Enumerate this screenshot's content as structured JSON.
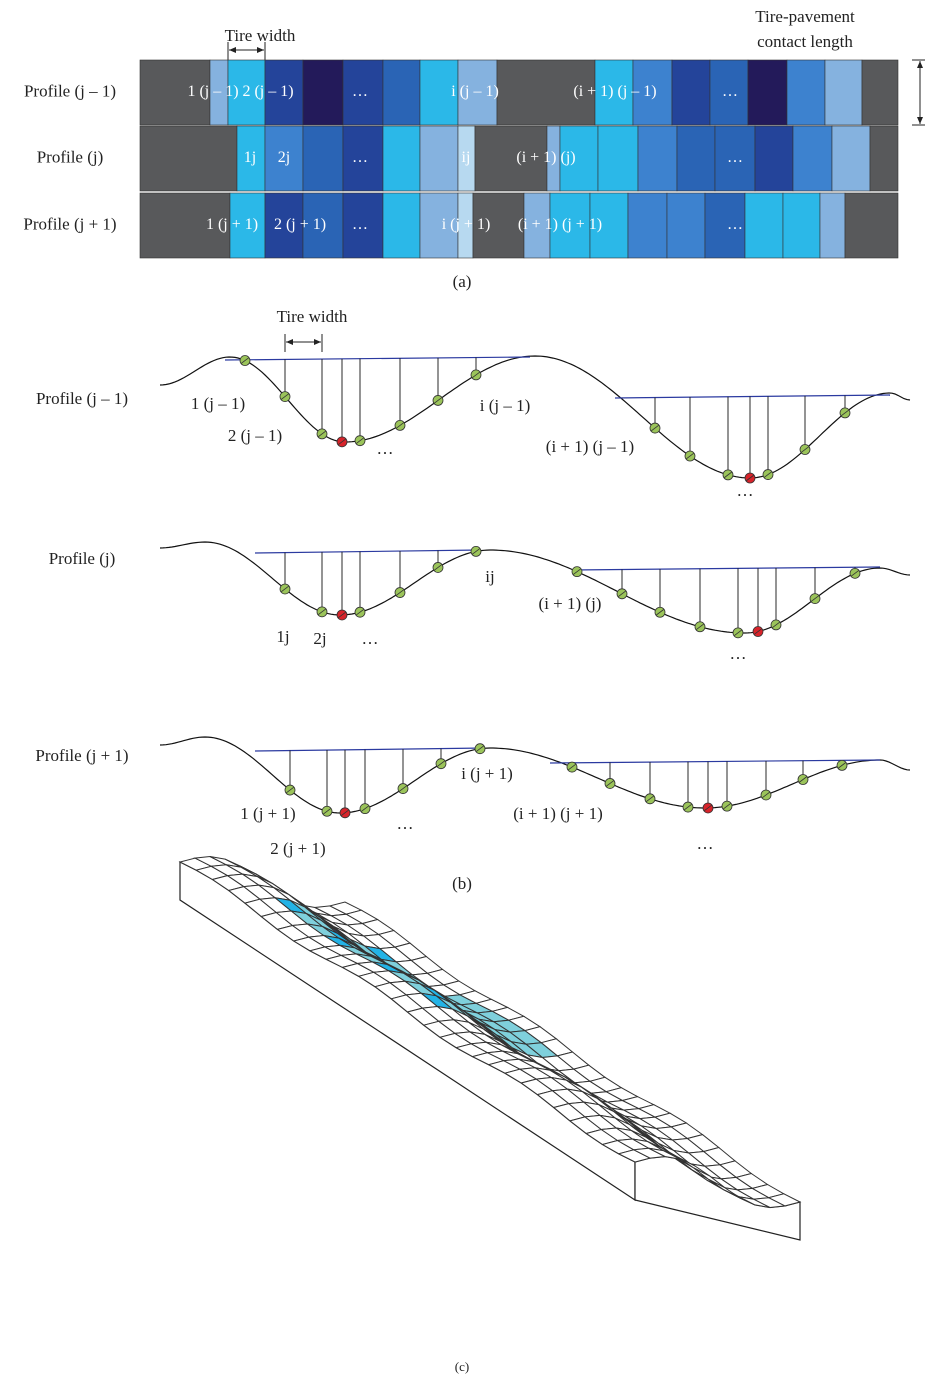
{
  "panel_a": {
    "tire_width": "Tire width",
    "contact_length": [
      "Tire-pavement",
      "contact length"
    ],
    "rows": [
      {
        "label": "Profile (j – 1)",
        "cells": [
          "1 (j – 1)",
          "2 (j – 1)",
          "…",
          "i (j – 1)",
          "(i + 1) (j – 1)",
          "…"
        ]
      },
      {
        "label": "Profile (j)",
        "cells": [
          "1j",
          "2j",
          "…",
          "ij",
          "(i + 1) (j)",
          "…"
        ]
      },
      {
        "label": "Profile (j + 1)",
        "cells": [
          "1 (j + 1)",
          "2 (j + 1)",
          "…",
          "i (j + 1)",
          "(i + 1) (j + 1)",
          "…"
        ]
      }
    ],
    "caption": "(a)"
  },
  "panel_b": {
    "tire_width": "Tire width",
    "profiles": [
      {
        "label": "Profile (j – 1)",
        "points": [
          "1 (j – 1)",
          "2 (j – 1)",
          "…",
          "i (j – 1)",
          "(i + 1) (j – 1)",
          "…"
        ]
      },
      {
        "label": "Profile (j)",
        "points": [
          "1j",
          "2j",
          "…",
          "ij",
          "(i + 1) (j)",
          "…"
        ]
      },
      {
        "label": "Profile (j + 1)",
        "points": [
          "1 (j + 1)",
          "2 (j + 1)",
          "…",
          "i (j + 1)",
          "(i + 1) (j + 1)",
          "…"
        ]
      }
    ],
    "caption": "(b)"
  },
  "panel_c": {
    "caption": "(c)"
  }
}
